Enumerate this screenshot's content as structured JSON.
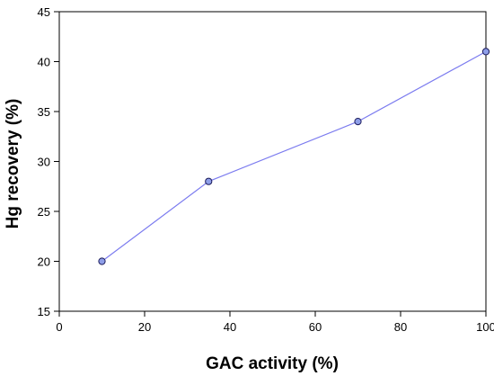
{
  "chart_data": {
    "type": "line",
    "title": "",
    "xlabel": "GAC activity (%)",
    "ylabel": "Hg recovery (%)",
    "xlim": [
      0,
      100
    ],
    "ylim": [
      15,
      45
    ],
    "x_ticks": [
      0,
      20,
      40,
      60,
      80,
      100
    ],
    "y_ticks": [
      15,
      20,
      25,
      30,
      35,
      40,
      45
    ],
    "grid": false,
    "series": [
      {
        "points": [
          {
            "x": 10,
            "y": 20
          },
          {
            "x": 35,
            "y": 28
          },
          {
            "x": 70,
            "y": 34
          },
          {
            "x": 100,
            "y": 41
          }
        ]
      }
    ],
    "colors": {
      "line": "#7b7bef",
      "marker_fill": "#8e9ee8",
      "marker_stroke": "#1a1a5a",
      "axis": "#000000"
    }
  }
}
